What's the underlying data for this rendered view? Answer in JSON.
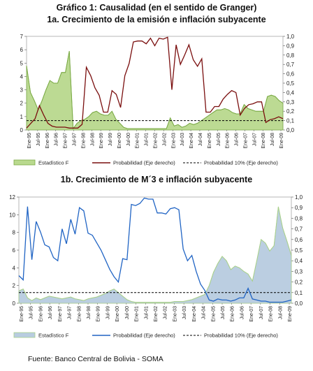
{
  "title": "Gráfico 1: Causalidad (en el sentido de Granger)",
  "source": "Fuente: Banco Central de Bolivia - SOMA",
  "colors": {
    "f_fill_a": "#b9d98e",
    "f_line_a": "#7aaa45",
    "prob_a": "#7a0e0e",
    "f_fill_b": "#b8cce0",
    "f_line_b": "#a8d08a",
    "prob_b": "#2064c4",
    "ref": "#000000"
  },
  "chart_data": [
    {
      "type": "area",
      "title": "1a. Crecimiento de la emisión e inflación subyacente",
      "x_tick_labels": [
        "Ene-95",
        "Jul-95",
        "Ene-96",
        "Jul-96",
        "Ene-97",
        "Jul-97",
        "Ene-98",
        "Jul-98",
        "Ene-99",
        "Jul-99",
        "Ene-00",
        "Jul-00",
        "Ene-01",
        "Jul-01",
        "Ene-02",
        "Jul-02",
        "Ene-03",
        "Jul-03",
        "Ene-04",
        "Jul-04",
        "Ene-05",
        "Jul-05",
        "Ene-06",
        "Jul-06",
        "Ene-07",
        "Jul-07",
        "Ene-08",
        "Jul-08",
        "Ene-09"
      ],
      "ylim_left": [
        0,
        7
      ],
      "ylim_right": [
        0,
        1.0
      ],
      "left_ticks": [
        "0",
        "1",
        "2",
        "3",
        "4",
        "5",
        "6",
        "7"
      ],
      "right_ticks": [
        "0,0",
        "0,1",
        "0,2",
        "0,3",
        "0,4",
        "0,5",
        "0,6",
        "0,7",
        "0,8",
        "0,9",
        "1,0"
      ],
      "legend_placement": "bottom",
      "series": [
        {
          "name": "Estadístico F",
          "axis": "left",
          "kind": "area",
          "values": [
            4.8,
            2.8,
            2.2,
            1.5,
            2.2,
            3.0,
            3.7,
            3.5,
            3.5,
            4.3,
            4.3,
            5.9,
            0.1,
            0.5,
            0.7,
            0.8,
            1.0,
            1.3,
            1.4,
            1.2,
            1.1,
            1.1,
            1.4,
            0.8,
            0.5,
            0.2,
            0.1,
            0.1,
            0.1,
            0.1,
            0.1,
            0.1,
            0.1,
            0.1,
            0.1,
            0.1,
            0.1,
            0.9,
            0.3,
            0.4,
            0.2,
            0.3,
            0.5,
            0.4,
            0.5,
            0.7,
            0.9,
            1.1,
            1.3,
            1.5,
            1.5,
            1.6,
            1.5,
            1.3,
            1.2,
            1.2,
            1.9,
            1.6,
            1.5,
            1.4,
            1.4,
            1.4,
            2.5,
            2.6,
            2.5,
            2.2,
            2.0
          ]
        },
        {
          "name": "Probabilidad (Eje derecho)",
          "axis": "right",
          "kind": "line",
          "values": [
            0.02,
            0.07,
            0.12,
            0.26,
            0.16,
            0.07,
            0.04,
            0.03,
            0.03,
            0.03,
            0.02,
            0.02,
            0.02,
            0.06,
            0.67,
            0.58,
            0.45,
            0.37,
            0.19,
            0.19,
            0.42,
            0.38,
            0.24,
            0.58,
            0.71,
            0.94,
            0.95,
            0.95,
            0.92,
            0.98,
            0.9,
            0.98,
            0.97,
            0.99,
            0.43,
            0.91,
            0.7,
            0.8,
            0.91,
            0.75,
            0.68,
            0.76,
            0.19,
            0.19,
            0.25,
            0.25,
            0.33,
            0.38,
            0.42,
            0.4,
            0.16,
            0.23,
            0.27,
            0.28,
            0.3,
            0.3,
            0.08,
            0.11,
            0.12,
            0.14,
            0.12
          ]
        },
        {
          "name": "Probabilidad 10% (Eje derecho)",
          "axis": "right",
          "kind": "dashed",
          "values": [
            0.1
          ]
        }
      ]
    },
    {
      "type": "area",
      "title": "1b. Crecimiento de M´3 e inflación subyacente",
      "x_tick_labels": [
        "Ene-95",
        "Jul-95",
        "Ene-96",
        "Jul-96",
        "Ene-97",
        "Jul-97",
        "Ene-98",
        "Jul-98",
        "Ene-99",
        "Jul-99",
        "Ene-00",
        "Jul-00",
        "Ene-01",
        "Jul-01",
        "Ene-02",
        "Jul-02",
        "Ene-03",
        "Jul-03",
        "Ene-04",
        "Jul-04",
        "Ene-05",
        "Jul-05",
        "Ene-06",
        "Jul-06",
        "Ene-07",
        "Jul-07",
        "Ene-08",
        "Jul-08",
        "Ene-09"
      ],
      "ylim_left": [
        0,
        12
      ],
      "ylim_right": [
        0,
        1.0
      ],
      "left_ticks": [
        "0",
        "2",
        "4",
        "6",
        "8",
        "10",
        "12"
      ],
      "right_ticks": [
        "0,0",
        "0,1",
        "0,2",
        "0,3",
        "0,4",
        "0,5",
        "0,6",
        "0,7",
        "0,8",
        "0,9",
        "1,0"
      ],
      "legend_placement": "bottom",
      "series": [
        {
          "name": "Estadístico F",
          "axis": "left",
          "kind": "area",
          "values": [
            1.4,
            1.6,
            0.6,
            0.3,
            0.6,
            0.4,
            0.6,
            0.8,
            0.7,
            0.6,
            0.5,
            0.6,
            0.7,
            0.5,
            0.4,
            0.3,
            0.5,
            0.6,
            0.7,
            0.9,
            1.1,
            1.4,
            1.6,
            1.2,
            0.8,
            0.4,
            0.2,
            0.1,
            0.1,
            0.1,
            0.1,
            0.1,
            0.1,
            0.1,
            0.1,
            0.1,
            0.2,
            0.2,
            0.2,
            0.3,
            0.4,
            0.6,
            0.8,
            1.0,
            2.0,
            3.5,
            4.5,
            5.3,
            4.8,
            3.8,
            4.2,
            4.0,
            3.6,
            3.3,
            2.5,
            4.8,
            7.2,
            6.8,
            5.9,
            6.5,
            10.9,
            8.5,
            7.0,
            5.4
          ]
        },
        {
          "name": "Probabilidad (Eje derecho)",
          "axis": "right",
          "kind": "line",
          "values": [
            0.26,
            0.22,
            0.91,
            0.41,
            0.77,
            0.67,
            0.55,
            0.53,
            0.43,
            0.4,
            0.7,
            0.56,
            0.79,
            0.65,
            0.9,
            0.87,
            0.66,
            0.64,
            0.57,
            0.5,
            0.41,
            0.32,
            0.25,
            0.2,
            0.42,
            0.41,
            0.93,
            0.92,
            0.94,
            0.99,
            0.98,
            0.98,
            0.85,
            0.85,
            0.84,
            0.89,
            0.9,
            0.88,
            0.51,
            0.4,
            0.45,
            0.3,
            0.18,
            0.12,
            0.03,
            0.02,
            0.04,
            0.03,
            0.03,
            0.02,
            0.03,
            0.05,
            0.05,
            0.14,
            0.04,
            0.03,
            0.02,
            0.02,
            0.01,
            0.01,
            0.01,
            0.01,
            0.02,
            0.03
          ]
        },
        {
          "name": "Probabilidad 10% (Eje derecho)",
          "axis": "right",
          "kind": "dashed",
          "values": [
            0.1
          ]
        }
      ]
    }
  ]
}
